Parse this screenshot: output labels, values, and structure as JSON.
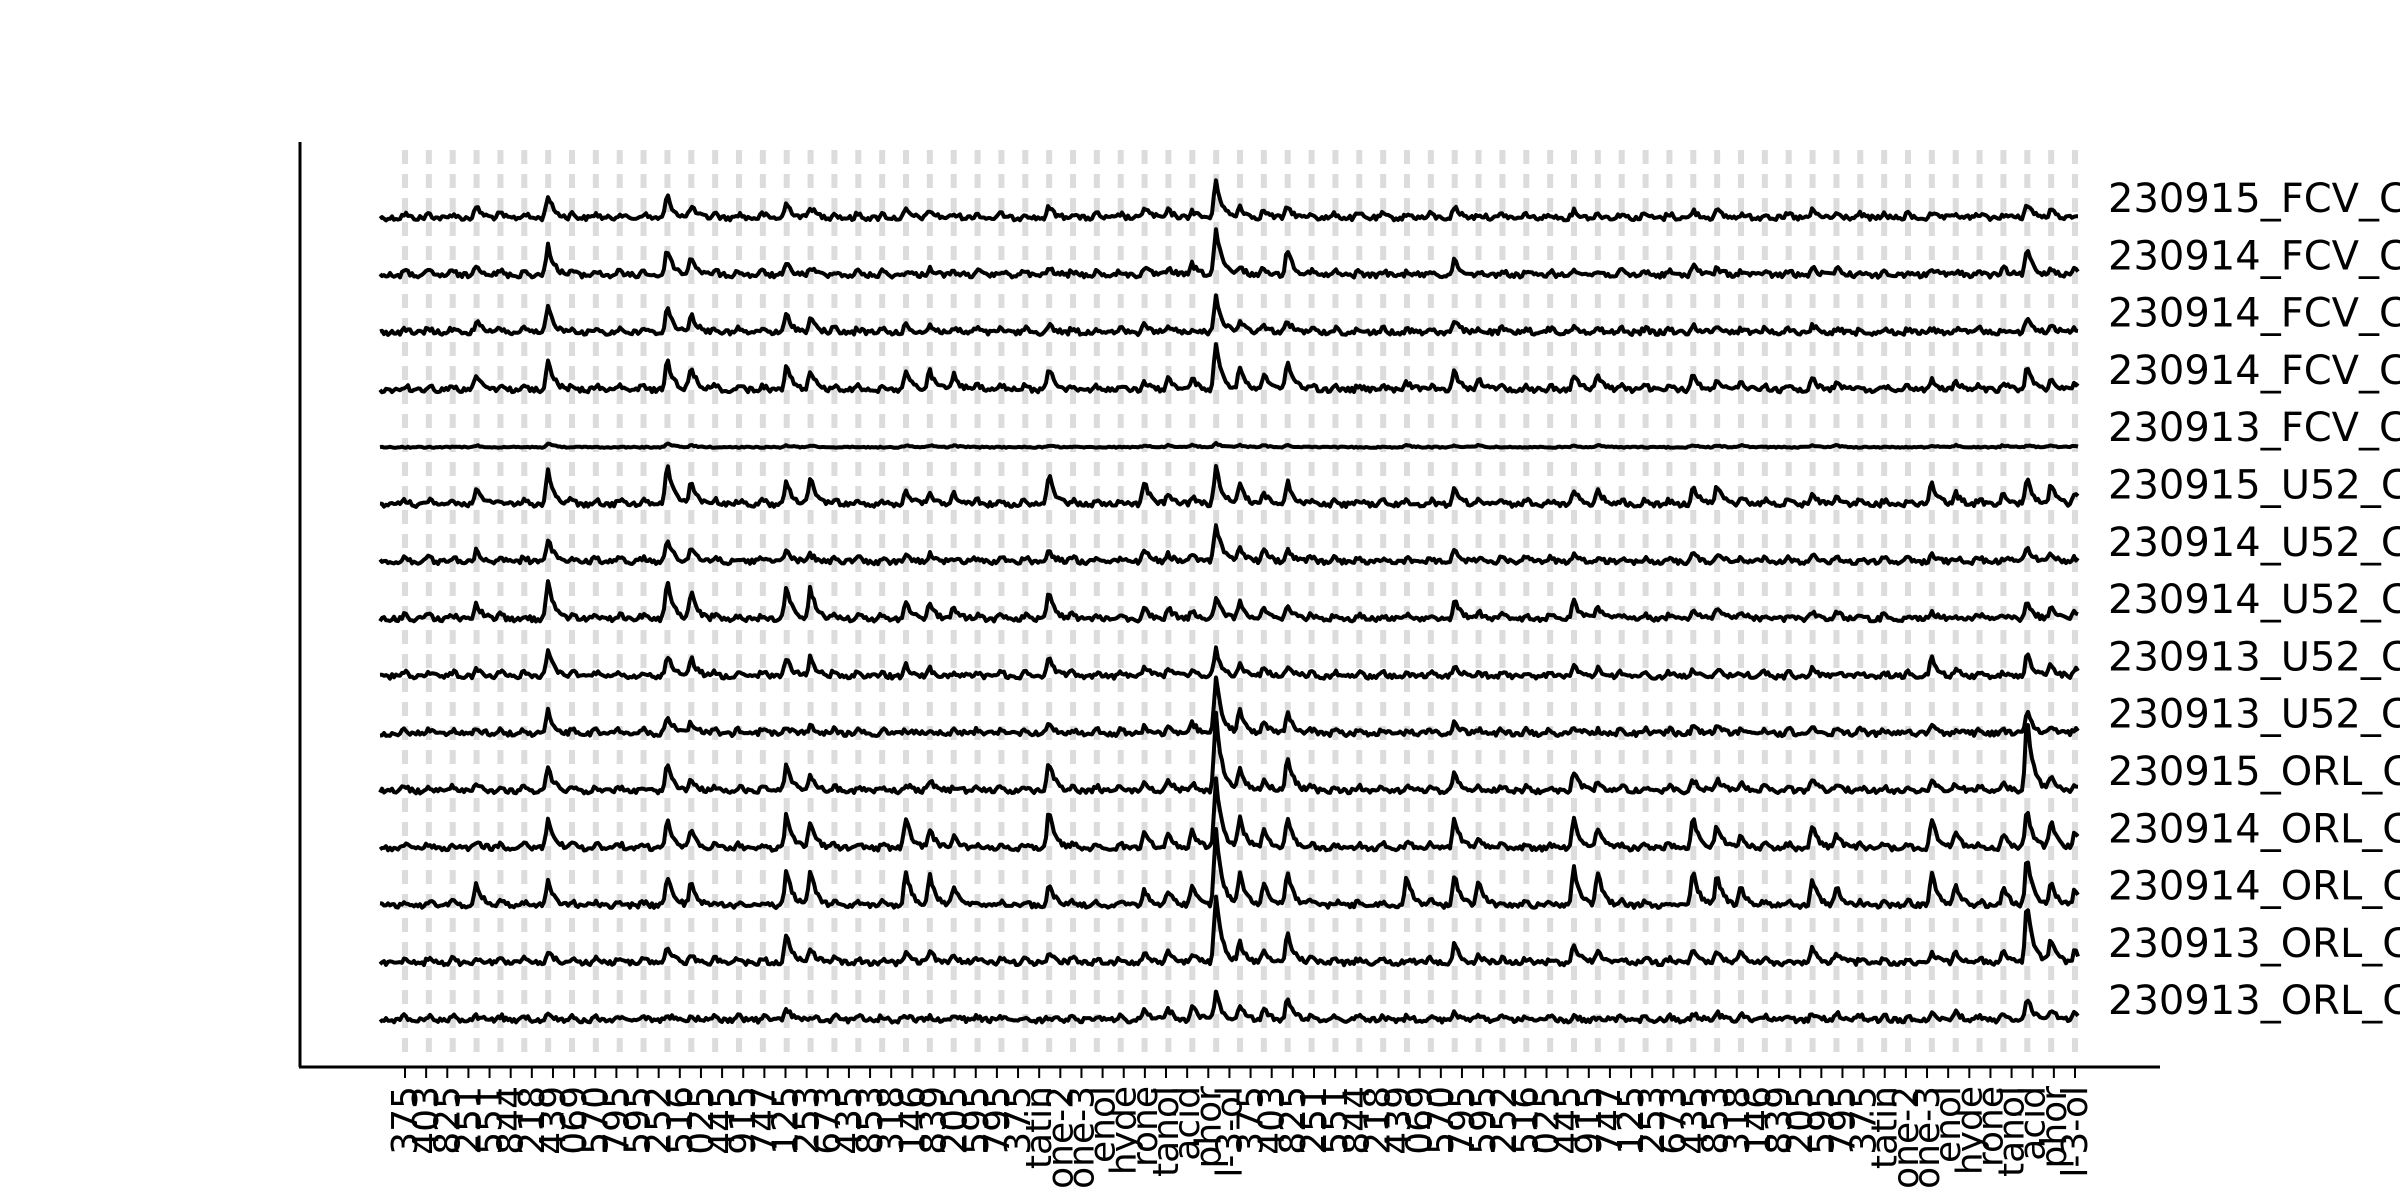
{
  "chart_data": {
    "type": "line",
    "title": "",
    "xlabel": "",
    "ylabel": "",
    "grid": false,
    "legend": "none",
    "colors": {
      "trace": "#000000",
      "marker_band": "#dcdcdc",
      "axis": "#000000"
    },
    "trace_labels": [
      "230915_FCV_C",
      "230914_FCV_C",
      "230914_FCV_C",
      "230914_FCV_C",
      "230913_FCV_C",
      "230915_U52_C",
      "230914_U52_C",
      "230914_U52_C",
      "230913_U52_C",
      "230913_U52_C",
      "230915_ORL_C",
      "230914_ORL_C",
      "230914_ORL_C",
      "230913_ORL_C",
      "230913_ORL_C"
    ],
    "x_tick_labels": [
      "375",
      "403",
      "825",
      "251",
      "551",
      "844",
      "218",
      "439",
      "069",
      "570",
      "795",
      "595",
      "252",
      "516",
      "025",
      "445",
      "915",
      "747",
      "125",
      "253",
      "673",
      "435",
      "853",
      "318",
      "146",
      "839",
      "205",
      "595",
      "795",
      "375",
      "tatin",
      "one-2",
      "one-3",
      "enol",
      "hyde",
      "rone",
      "tanol",
      "acid",
      "phor",
      "l-3-ol",
      "375",
      "403",
      "825",
      "251",
      "551",
      "844",
      "218",
      "439",
      "069",
      "570",
      "795",
      "595",
      "252",
      "516",
      "025",
      "445",
      "915",
      "747",
      "125",
      "253",
      "673",
      "435",
      "853",
      "318",
      "146",
      "839",
      "205",
      "595",
      "795",
      "375",
      "tatin",
      "one-2",
      "one-3",
      "enol",
      "hyde",
      "rone",
      "tanol",
      "acid",
      "phor",
      "l-3-ol"
    ],
    "markers": {
      "count": 71,
      "peaks": [
        {
          "marker": 3,
          "heights": [
            0.3,
            0.3,
            0.3,
            0.4,
            0.05,
            0.4,
            0.3,
            0.4,
            0.2,
            0.15,
            0.15,
            0.2,
            0.6,
            0.15,
            0.1
          ]
        },
        {
          "marker": 6,
          "heights": [
            0.6,
            0.8,
            0.7,
            0.8,
            0.1,
            0.9,
            0.6,
            1.0,
            0.7,
            0.6,
            0.6,
            0.8,
            0.7,
            0.3,
            0.15
          ]
        },
        {
          "marker": 11,
          "heights": [
            0.6,
            0.7,
            0.7,
            0.8,
            0.1,
            1.1,
            0.6,
            1.0,
            0.6,
            0.5,
            0.7,
            0.8,
            0.8,
            0.4,
            0.15
          ]
        },
        {
          "marker": 12,
          "heights": [
            0.3,
            0.5,
            0.5,
            0.6,
            0.05,
            0.6,
            0.4,
            0.7,
            0.5,
            0.3,
            0.3,
            0.5,
            0.6,
            0.2,
            0.1
          ]
        },
        {
          "marker": 16,
          "heights": [
            0.4,
            0.3,
            0.5,
            0.7,
            0.05,
            0.6,
            0.3,
            0.9,
            0.5,
            0.2,
            0.7,
            0.9,
            0.9,
            0.8,
            0.3
          ]
        },
        {
          "marker": 17,
          "heights": [
            0.3,
            0.2,
            0.4,
            0.5,
            0.05,
            0.7,
            0.2,
            0.8,
            0.5,
            0.2,
            0.4,
            0.7,
            0.9,
            0.4,
            0.1
          ]
        },
        {
          "marker": 21,
          "heights": [
            0.2,
            0.1,
            0.2,
            0.5,
            0.05,
            0.4,
            0.2,
            0.5,
            0.3,
            0.1,
            0.2,
            0.8,
            0.9,
            0.3,
            0.1
          ]
        },
        {
          "marker": 22,
          "heights": [
            0.2,
            0.2,
            0.2,
            0.5,
            0.05,
            0.3,
            0.2,
            0.4,
            0.2,
            0.1,
            0.3,
            0.5,
            0.8,
            0.3,
            0.1
          ]
        },
        {
          "marker": 23,
          "heights": [
            0.1,
            0.1,
            0.1,
            0.4,
            0.05,
            0.3,
            0.1,
            0.3,
            0.1,
            0.1,
            0.1,
            0.3,
            0.5,
            0.2,
            0.1
          ]
        },
        {
          "marker": 27,
          "heights": [
            0.3,
            0.2,
            0.2,
            0.6,
            0.05,
            0.8,
            0.3,
            0.7,
            0.5,
            0.3,
            0.8,
            1.0,
            0.6,
            0.3,
            0.1
          ]
        },
        {
          "marker": 31,
          "heights": [
            0.3,
            0.2,
            0.2,
            0.2,
            0.05,
            0.6,
            0.3,
            0.3,
            0.3,
            0.2,
            0.2,
            0.4,
            0.4,
            0.3,
            0.3
          ]
        },
        {
          "marker": 32,
          "heights": [
            0.2,
            0.2,
            0.2,
            0.3,
            0.05,
            0.3,
            0.2,
            0.3,
            0.2,
            0.2,
            0.3,
            0.4,
            0.4,
            0.3,
            0.3
          ]
        },
        {
          "marker": 33,
          "heights": [
            0.2,
            0.3,
            0.1,
            0.3,
            0.05,
            0.2,
            0.2,
            0.2,
            0.2,
            0.3,
            0.2,
            0.5,
            0.5,
            0.2,
            0.4
          ]
        },
        {
          "marker": 34,
          "heights": [
            1.0,
            1.2,
            1.0,
            1.2,
            0.1,
            1.0,
            1.0,
            0.6,
            0.7,
            1.5,
            2.0,
            1.8,
            2.0,
            1.8,
            0.7
          ]
        },
        {
          "marker": 35,
          "heights": [
            0.3,
            0.2,
            0.3,
            0.6,
            0.05,
            0.5,
            0.4,
            0.5,
            0.3,
            0.6,
            0.6,
            0.8,
            0.8,
            0.5,
            0.4
          ]
        },
        {
          "marker": 36,
          "heights": [
            0.2,
            0.2,
            0.2,
            0.4,
            0.05,
            0.3,
            0.3,
            0.3,
            0.2,
            0.3,
            0.3,
            0.5,
            0.6,
            0.3,
            0.3
          ]
        },
        {
          "marker": 37,
          "heights": [
            0.3,
            0.7,
            0.3,
            0.8,
            0.05,
            0.6,
            0.3,
            0.4,
            0.3,
            0.6,
            0.9,
            0.8,
            0.9,
            0.8,
            0.6
          ]
        },
        {
          "marker": 42,
          "heights": [
            0.1,
            0.1,
            0.1,
            0.2,
            0.05,
            0.1,
            0.1,
            0.1,
            0.1,
            0.1,
            0.1,
            0.2,
            0.8,
            0.1,
            0.1
          ]
        },
        {
          "marker": 44,
          "heights": [
            0.3,
            0.4,
            0.3,
            0.5,
            0.05,
            0.4,
            0.3,
            0.5,
            0.3,
            0.3,
            0.5,
            0.8,
            0.8,
            0.5,
            0.2
          ]
        },
        {
          "marker": 45,
          "heights": [
            0.1,
            0.1,
            0.1,
            0.3,
            0.05,
            0.1,
            0.1,
            0.2,
            0.1,
            0.1,
            0.1,
            0.2,
            0.6,
            0.2,
            0.1
          ]
        },
        {
          "marker": 49,
          "heights": [
            0.2,
            0.2,
            0.2,
            0.4,
            0.05,
            0.4,
            0.2,
            0.5,
            0.3,
            0.2,
            0.5,
            0.8,
            1.0,
            0.5,
            0.1
          ]
        },
        {
          "marker": 50,
          "heights": [
            0.1,
            0.1,
            0.1,
            0.4,
            0.05,
            0.4,
            0.1,
            0.3,
            0.2,
            0.1,
            0.2,
            0.5,
            0.9,
            0.3,
            0.1
          ]
        },
        {
          "marker": 54,
          "heights": [
            0.2,
            0.3,
            0.2,
            0.4,
            0.05,
            0.5,
            0.2,
            0.3,
            0.2,
            0.2,
            0.3,
            0.8,
            0.9,
            0.4,
            0.2
          ]
        },
        {
          "marker": 55,
          "heights": [
            0.2,
            0.2,
            0.2,
            0.3,
            0.05,
            0.5,
            0.2,
            0.3,
            0.2,
            0.2,
            0.3,
            0.6,
            0.8,
            0.3,
            0.2
          ]
        },
        {
          "marker": 56,
          "heights": [
            0.1,
            0.1,
            0.1,
            0.2,
            0.05,
            0.2,
            0.1,
            0.2,
            0.1,
            0.1,
            0.2,
            0.3,
            0.5,
            0.3,
            0.2
          ]
        },
        {
          "marker": 59,
          "heights": [
            0.2,
            0.2,
            0.2,
            0.3,
            0.05,
            0.3,
            0.2,
            0.2,
            0.2,
            0.2,
            0.3,
            0.6,
            0.7,
            0.4,
            0.2
          ]
        },
        {
          "marker": 60,
          "heights": [
            0.1,
            0.2,
            0.1,
            0.2,
            0.05,
            0.2,
            0.1,
            0.2,
            0.1,
            0.1,
            0.2,
            0.4,
            0.5,
            0.3,
            0.2
          ]
        },
        {
          "marker": 64,
          "heights": [
            0.1,
            0.2,
            0.1,
            0.3,
            0.05,
            0.6,
            0.2,
            0.2,
            0.5,
            0.2,
            0.3,
            0.8,
            0.9,
            0.3,
            0.2
          ]
        },
        {
          "marker": 65,
          "heights": [
            0.1,
            0.1,
            0.1,
            0.2,
            0.05,
            0.3,
            0.1,
            0.1,
            0.2,
            0.1,
            0.2,
            0.4,
            0.5,
            0.3,
            0.2
          ]
        },
        {
          "marker": 67,
          "heights": [
            0.1,
            0.2,
            0.1,
            0.2,
            0.05,
            0.3,
            0.1,
            0.1,
            0.1,
            0.1,
            0.2,
            0.4,
            0.5,
            0.3,
            0.2
          ]
        },
        {
          "marker": 68,
          "heights": [
            0.4,
            0.7,
            0.4,
            0.6,
            0.05,
            0.7,
            0.4,
            0.5,
            0.6,
            0.6,
            1.9,
            1.0,
            1.3,
            1.6,
            0.6
          ]
        },
        {
          "marker": 69,
          "heights": [
            0.2,
            0.2,
            0.2,
            0.3,
            0.05,
            0.5,
            0.2,
            0.3,
            0.3,
            0.2,
            0.4,
            0.7,
            0.6,
            0.6,
            0.3
          ]
        },
        {
          "marker": 70,
          "heights": [
            0.1,
            0.2,
            0.1,
            0.2,
            0.05,
            0.3,
            0.1,
            0.2,
            0.2,
            0.1,
            0.2,
            0.4,
            0.4,
            0.3,
            0.2
          ]
        }
      ]
    }
  }
}
